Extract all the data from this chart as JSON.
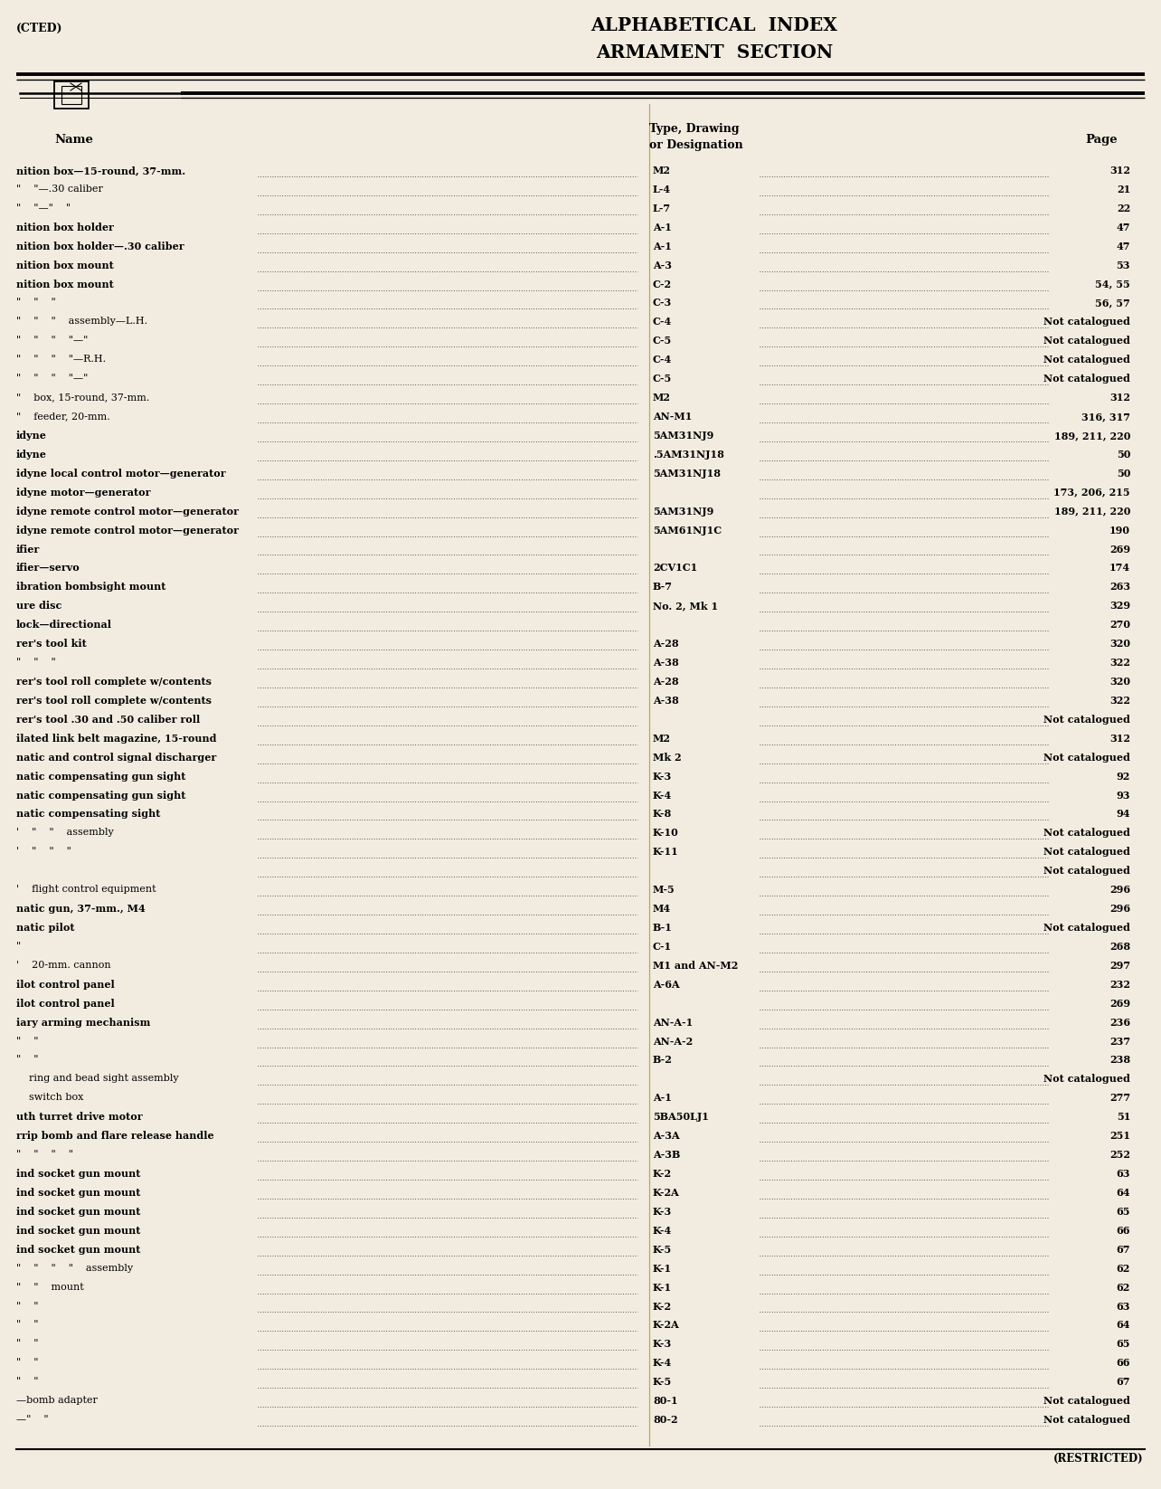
{
  "bg_color": "#f2ece0",
  "title_line1": "ALPHABETICAL  INDEX",
  "title_line2": "ARMAMENT  SECTION",
  "header_left": "(CTED)",
  "footer_right": "(RESTRICTED)",
  "col_name": "Name",
  "col_type": "Type, Drawing",
  "col_desig": "or Designation",
  "col_page": "Page",
  "rows": [
    [
      "nition box—15-round, 37-mm.",
      "M2",
      "312"
    ],
    [
      "\"    \"—.30 caliber",
      "L-4",
      "21"
    ],
    [
      "\"    \"—\"    \"",
      "L-7",
      "22"
    ],
    [
      "nition box holder",
      "A-1",
      "47"
    ],
    [
      "nition box holder—.30 caliber",
      "A-1",
      "47"
    ],
    [
      "nition box mount",
      "A-3",
      "53"
    ],
    [
      "nition box mount",
      "C-2",
      "54, 55"
    ],
    [
      "\"    \"    \"",
      "C-3",
      "56, 57"
    ],
    [
      "\"    \"    \"    assembly—L.H.",
      "C-4",
      "Not catalogued"
    ],
    [
      "\"    \"    \"    \"—\"",
      "C-5",
      "Not catalogued"
    ],
    [
      "\"    \"    \"    \"—R.H.",
      "C-4",
      "Not catalogued"
    ],
    [
      "\"    \"    \"    \"—\"",
      "C-5",
      "Not catalogued"
    ],
    [
      "\"    box, 15-round, 37-mm.",
      "M2",
      "312"
    ],
    [
      "\"    feeder, 20-mm.",
      "AN-M1",
      "316, 317"
    ],
    [
      "idyne",
      "5AM31NJ9",
      "189, 211, 220"
    ],
    [
      "idyne",
      ".5AM31NJ18",
      "50"
    ],
    [
      "idyne local control motor—generator",
      "5AM31NJ18",
      "50"
    ],
    [
      "idyne motor—generator",
      "",
      "173, 206, 215"
    ],
    [
      "idyne remote control motor—generator",
      "5AM31NJ9",
      "189, 211, 220"
    ],
    [
      "idyne remote control motor—generator",
      "5AM61NJ1C",
      "190"
    ],
    [
      "ifier",
      "",
      "269"
    ],
    [
      "ifier—servo",
      "2CV1C1",
      "174"
    ],
    [
      "ibration bombsight mount",
      "B-7",
      "263"
    ],
    [
      "ure disc",
      "No. 2, Mk 1",
      "329"
    ],
    [
      "lock—directional",
      "",
      "270"
    ],
    [
      "rer's tool kit",
      "A-28",
      "320"
    ],
    [
      "\"    \"    \"",
      "A-38",
      "322"
    ],
    [
      "rer's tool roll complete w/contents",
      "A-28",
      "320"
    ],
    [
      "rer's tool roll complete w/contents",
      "A-38",
      "322"
    ],
    [
      "rer's tool .30 and .50 caliber roll",
      "",
      "Not catalogued"
    ],
    [
      "ilated link belt magazine, 15-round",
      "M2",
      "312"
    ],
    [
      "natic and control signal discharger",
      "Mk 2",
      "Not catalogued"
    ],
    [
      "natic compensating gun sight",
      "K-3",
      "92"
    ],
    [
      "natic compensating gun sight",
      "K-4",
      "93"
    ],
    [
      "natic compensating sight",
      "K-8",
      "94"
    ],
    [
      "'    \"    \"    assembly",
      "K-10",
      "Not catalogued"
    ],
    [
      "'    \"    \"    \"",
      "K-11",
      "Not catalogued"
    ],
    [
      "",
      "",
      "Not catalogued"
    ],
    [
      "'    flight control equipment",
      "M-5",
      "296"
    ],
    [
      "natic gun, 37-mm., M4",
      "M4",
      "296"
    ],
    [
      "natic pilot",
      "B-1",
      "Not catalogued"
    ],
    [
      "\"",
      "C-1",
      "268"
    ],
    [
      "'    20-mm. cannon",
      "M1 and AN-M2",
      "297"
    ],
    [
      "ilot control panel",
      "A-6A",
      "232"
    ],
    [
      "ilot control panel",
      "",
      "269"
    ],
    [
      "iary arming mechanism",
      "AN-A-1",
      "236"
    ],
    [
      "\"    \"",
      "AN-A-2",
      "237"
    ],
    [
      "\"    \"",
      "B-2",
      "238"
    ],
    [
      "    ring and bead sight assembly",
      "",
      "Not catalogued"
    ],
    [
      "    switch box",
      "A-1",
      "277"
    ],
    [
      "uth turret drive motor",
      "5BA50LJ1",
      "51"
    ],
    [
      "rrip bomb and flare release handle",
      "A-3A",
      "251"
    ],
    [
      "\"    \"    \"    \"",
      "A-3B",
      "252"
    ],
    [
      "ind socket gun mount",
      "K-2",
      "63"
    ],
    [
      "ind socket gun mount",
      "K-2A",
      "64"
    ],
    [
      "ind socket gun mount",
      "K-3",
      "65"
    ],
    [
      "ind socket gun mount",
      "K-4",
      "66"
    ],
    [
      "ind socket gun mount",
      "K-5",
      "67"
    ],
    [
      "\"    \"    \"    \"    assembly",
      "K-1",
      "62"
    ],
    [
      "\"    \"    mount",
      "K-1",
      "62"
    ],
    [
      "\"    \"",
      "K-2",
      "63"
    ],
    [
      "\"    \"",
      "K-2A",
      "64"
    ],
    [
      "\"    \"",
      "K-3",
      "65"
    ],
    [
      "\"    \"",
      "K-4",
      "66"
    ],
    [
      "\"    \"",
      "K-5",
      "67"
    ],
    [
      "—bomb adapter",
      "80-1",
      "Not catalogued"
    ],
    [
      "—\"    \"",
      "80-2",
      "Not catalogued"
    ]
  ]
}
